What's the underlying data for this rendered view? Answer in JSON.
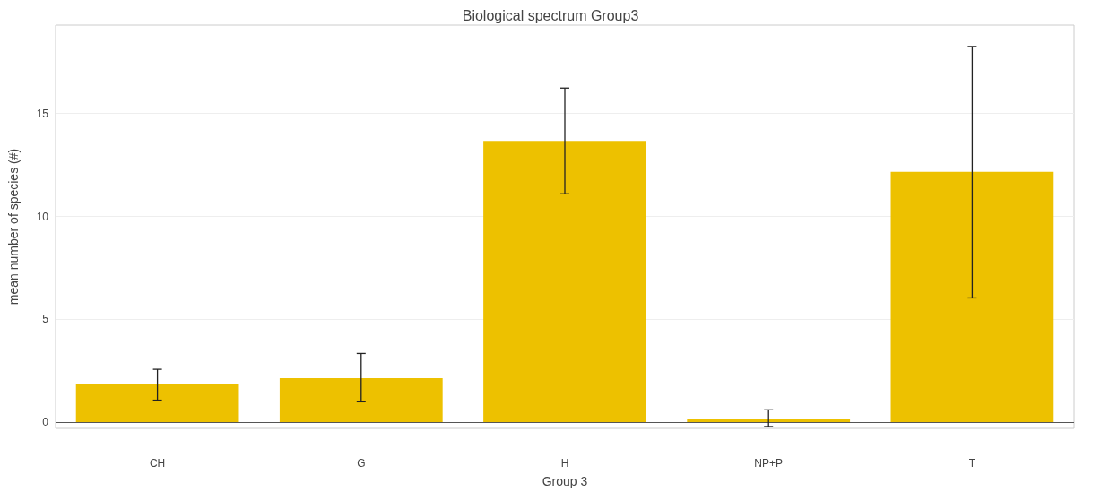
{
  "chart_data": {
    "type": "bar",
    "title": "Biological spectrum Group3",
    "xlabel": "Group 3",
    "ylabel": "mean number of species (#)",
    "categories": [
      "CH",
      "G",
      "H",
      "NP+P",
      "T"
    ],
    "values": [
      1.84,
      2.14,
      13.67,
      0.17,
      12.17
    ],
    "errors": [
      [
        1.07,
        2.57
      ],
      [
        0.99,
        3.34
      ],
      [
        11.1,
        16.24
      ],
      [
        -0.21,
        0.6
      ],
      [
        6.04,
        18.26
      ]
    ],
    "color": "#edc100",
    "ylim": [
      -0.3,
      19.3
    ],
    "yticks": [
      0,
      5,
      10,
      15
    ],
    "grid": "y"
  }
}
